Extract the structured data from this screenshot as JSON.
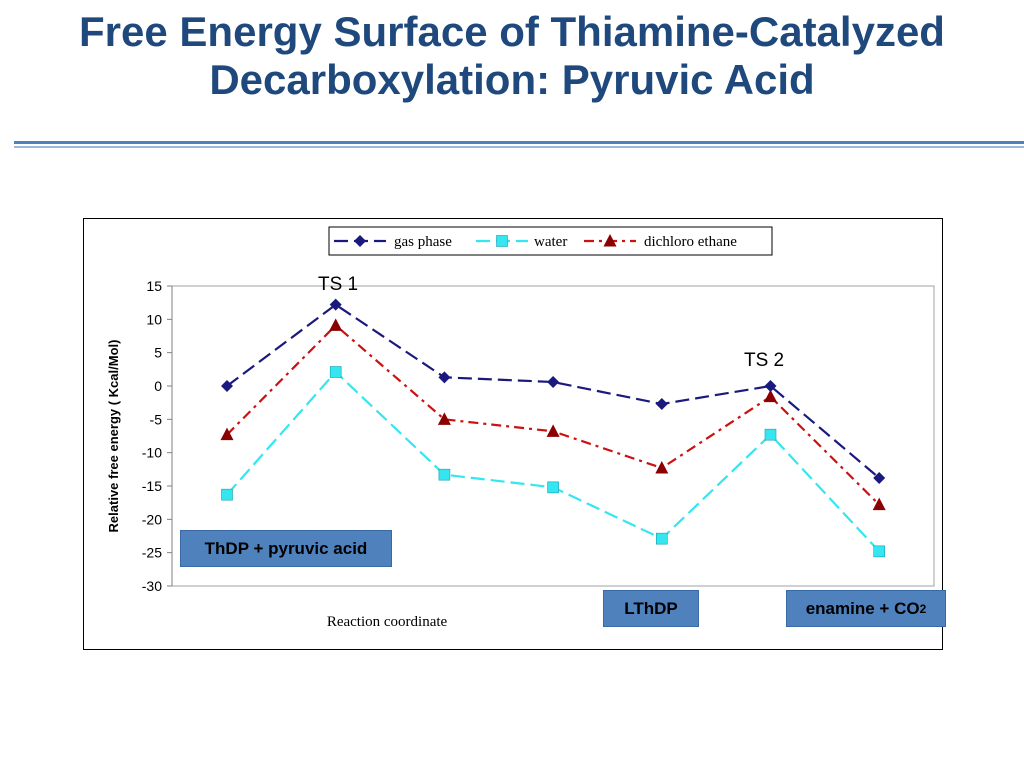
{
  "slide": {
    "title_line1": "Free Energy Surface of Thiamine-Catalyzed",
    "title_line2": "Decarboxylation: Pyruvic Acid",
    "colors": {
      "title": "#1f497d",
      "rule": "#4f81bd",
      "callout_box": "#4f81bd"
    }
  },
  "annotations": {
    "ts1": "TS 1",
    "ts2": "TS 2",
    "box1": "ThDP + pyruvic acid",
    "box2": "LThDP",
    "box3_main": "enamine + CO",
    "box3_sub": "2"
  },
  "chart_data": {
    "type": "line",
    "title": "",
    "xlabel": "Reaction coordinate",
    "ylabel": "Relative free energy ( Kcal/Mol)",
    "ylim": [
      -30,
      15
    ],
    "yticks": [
      "15",
      "10",
      "5",
      "0",
      "-5",
      "-10",
      "-15",
      "-20",
      "-25",
      "-30"
    ],
    "x": [
      1,
      2,
      3,
      4,
      5,
      6,
      7
    ],
    "grid": false,
    "legend_position": "top",
    "series": [
      {
        "name": "gas phase",
        "values": [
          0,
          12.2,
          1.3,
          0.6,
          -2.7,
          0,
          -13.8
        ],
        "color": "#1a1a7e",
        "marker": "diamond",
        "dash": "long-dash"
      },
      {
        "name": "water",
        "values": [
          -16.3,
          2.1,
          -13.3,
          -15.2,
          -22.9,
          -7.3,
          -24.8
        ],
        "color": "#33e6f0",
        "marker": "square",
        "dash": "long-dash"
      },
      {
        "name": "dichloro ethane",
        "values": [
          -7.3,
          9.1,
          -5.0,
          -6.8,
          -12.3,
          -1.6,
          -17.8
        ],
        "color": "#cc1111",
        "marker": "triangle",
        "dash": "dash-dot"
      }
    ]
  }
}
